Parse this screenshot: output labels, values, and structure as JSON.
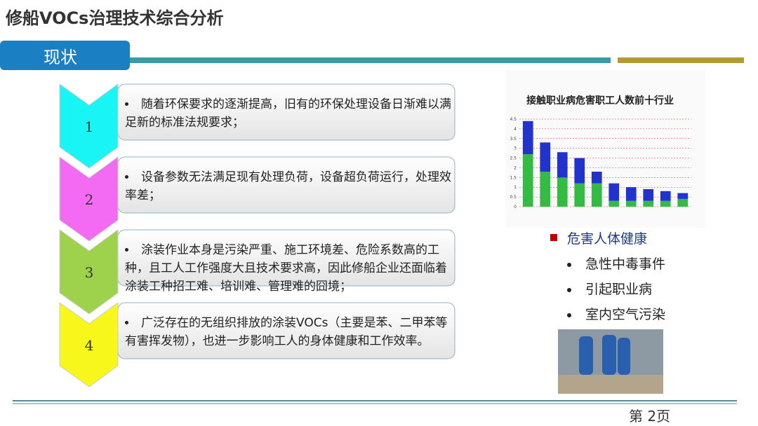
{
  "header": {
    "title": "修船VOCs治理技术综合分析",
    "section": "现状"
  },
  "items": [
    {
      "number": "1",
      "text": "随着环保要求的逐渐提高，旧有的环保处理设备日渐难以满足新的标准法规要求；",
      "color": "#19f5f5"
    },
    {
      "number": "2",
      "text": "设备参数无法满足现有处理负荷，设备超负荷运行，处理效率差；",
      "color": "#f36af3"
    },
    {
      "number": "3",
      "text": "涂装作业本身是污染严重、施工环境差、危险系数高的工种，且工人工作强度大且技术要求高，因此修船企业还面临着涂装工种招工难、培训难、管理难的囧境；",
      "color": "#9fd24c"
    },
    {
      "number": "4",
      "text": "广泛存在的无组织排放的涂装VOCs（主要是苯、二甲苯等有害挥发物），也进一步影响工人的身体健康和工作效率。",
      "color": "#f7f71c"
    }
  ],
  "chart_data": {
    "type": "bar",
    "title": "接触职业病危害职工人数前十行业",
    "categories": [
      null,
      null,
      null,
      null,
      null,
      null,
      null,
      null,
      null,
      null
    ],
    "series": [
      {
        "color": "#33bb44",
        "values": [
          2.7,
          1.8,
          1.5,
          1.2,
          1.2,
          0.3,
          0.3,
          0.3,
          0.3,
          0.4
        ]
      },
      {
        "color": "#2233cc",
        "values": [
          1.7,
          1.5,
          1.3,
          1.3,
          0.6,
          0.9,
          0.7,
          0.6,
          0.5,
          0.3
        ]
      }
    ],
    "stacked": true,
    "ylim": [
      0,
      4.5
    ],
    "yticks": [
      0,
      0.5,
      1,
      1.5,
      2,
      2.5,
      3,
      3.5,
      4,
      4.5
    ],
    "grid": true
  },
  "hazards": {
    "heading": "危害人体健康",
    "items": [
      "急性中毒事件",
      "引起职业病",
      "室内空气污染"
    ]
  },
  "footer": {
    "page": "第 2页"
  }
}
